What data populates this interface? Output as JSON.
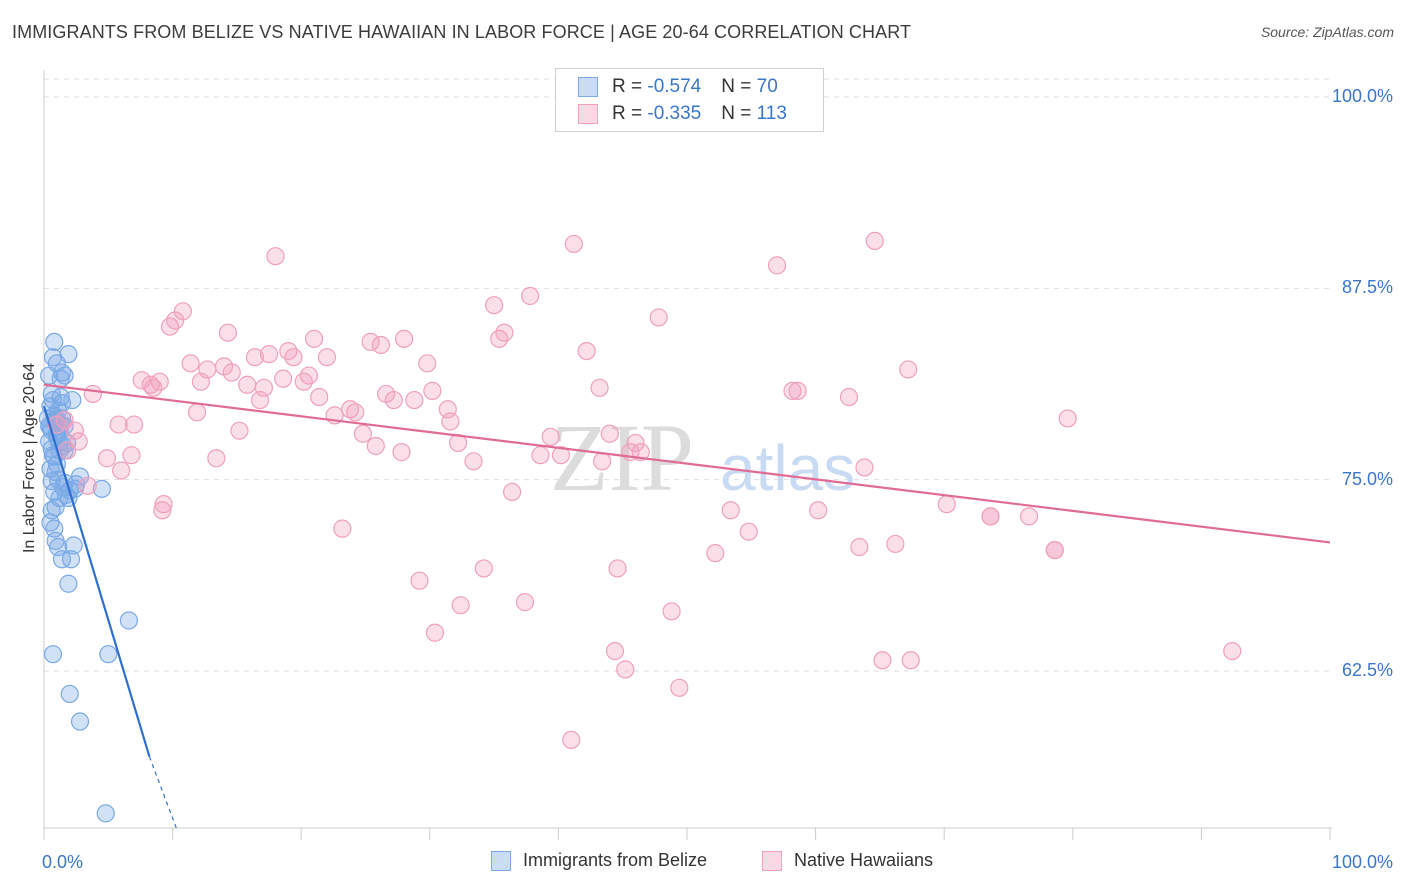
{
  "header": {
    "title": "IMMIGRANTS FROM BELIZE VS NATIVE HAWAIIAN IN LABOR FORCE | AGE 20-64 CORRELATION CHART",
    "source": "Source: ZipAtlas.com"
  },
  "watermark": {
    "zip": "ZIP",
    "atlas": "atlas"
  },
  "legend": {
    "rows": [
      {
        "r_label": "R = ",
        "r_value": "-0.574",
        "n_label": "N = ",
        "n_value": "70",
        "color": "#7aa9e6"
      },
      {
        "r_label": "R = ",
        "r_value": "-0.335",
        "n_label": "N = ",
        "n_value": "113",
        "color": "#f0a0bc"
      }
    ]
  },
  "bottom_legend": {
    "items": [
      {
        "label": "Immigrants from Belize",
        "color": "#7aa9e6"
      },
      {
        "label": "Native Hawaiians",
        "color": "#f0a0bc"
      }
    ]
  },
  "chart_data": {
    "type": "scatter",
    "ylabel": "In Labor Force | Age 20-64",
    "x_tick_labels": [
      "0.0%",
      "100.0%"
    ],
    "y_tick_labels": [
      "100.0%",
      "87.5%",
      "75.0%",
      "62.5%"
    ],
    "y_tick_values": [
      100,
      87.5,
      75,
      62.5
    ],
    "xlim": [
      0,
      100
    ],
    "ylim": [
      52,
      103
    ],
    "grid": true,
    "series": [
      {
        "name": "Immigrants from Belize",
        "color": "#7aa9e6",
        "line_color": "#2e6fd1",
        "trend": {
          "x0": 0.0,
          "y0": 79.8,
          "x1": 8.2,
          "y1": 56.9,
          "dash_to_x": 10.4,
          "dash_to_y": 52.0
        },
        "points": [
          [
            0.3,
            79.0
          ],
          [
            0.4,
            77.5
          ],
          [
            0.5,
            79.8
          ],
          [
            0.6,
            78.2
          ],
          [
            0.7,
            80.2
          ],
          [
            0.8,
            76.5
          ],
          [
            0.9,
            78.8
          ],
          [
            1.0,
            77.8
          ],
          [
            1.1,
            79.5
          ],
          [
            1.2,
            76.9
          ],
          [
            1.3,
            78.6
          ],
          [
            1.4,
            80.0
          ],
          [
            1.5,
            77.2
          ],
          [
            0.5,
            78.4
          ],
          [
            0.6,
            80.6
          ],
          [
            0.8,
            79.2
          ],
          [
            1.0,
            78.0
          ],
          [
            1.2,
            77.4
          ],
          [
            1.4,
            79.0
          ],
          [
            1.6,
            78.5
          ],
          [
            0.4,
            81.8
          ],
          [
            0.7,
            83.0
          ],
          [
            0.8,
            84.0
          ],
          [
            1.0,
            82.6
          ],
          [
            1.4,
            82.0
          ],
          [
            1.6,
            81.8
          ],
          [
            1.9,
            83.2
          ],
          [
            2.2,
            80.2
          ],
          [
            1.3,
            80.4
          ],
          [
            0.9,
            75.5
          ],
          [
            1.1,
            75.0
          ],
          [
            0.6,
            74.9
          ],
          [
            1.5,
            74.5
          ],
          [
            1.7,
            74.0
          ],
          [
            1.2,
            73.8
          ],
          [
            1.9,
            73.8
          ],
          [
            2.4,
            74.4
          ],
          [
            2.8,
            75.2
          ],
          [
            0.5,
            72.2
          ],
          [
            0.8,
            71.8
          ],
          [
            0.9,
            71.0
          ],
          [
            1.1,
            70.6
          ],
          [
            1.4,
            69.8
          ],
          [
            2.1,
            69.8
          ],
          [
            2.3,
            70.7
          ],
          [
            1.9,
            68.2
          ],
          [
            0.9,
            73.2
          ],
          [
            0.6,
            73.0
          ],
          [
            0.7,
            76.6
          ],
          [
            1.0,
            76.0
          ],
          [
            0.5,
            75.7
          ],
          [
            1.6,
            76.9
          ],
          [
            2.0,
            74.3
          ],
          [
            4.5,
            74.4
          ],
          [
            6.6,
            65.8
          ],
          [
            0.7,
            63.6
          ],
          [
            5.0,
            63.6
          ],
          [
            2.0,
            61.0
          ],
          [
            2.8,
            59.2
          ],
          [
            4.8,
            53.2
          ],
          [
            0.6,
            77.0
          ],
          [
            0.9,
            79.0
          ],
          [
            1.2,
            78.1
          ],
          [
            1.3,
            81.6
          ],
          [
            1.8,
            77.4
          ],
          [
            1.6,
            74.8
          ],
          [
            0.8,
            74.2
          ],
          [
            2.5,
            74.7
          ],
          [
            1.0,
            78.9
          ],
          [
            0.4,
            78.5
          ]
        ]
      },
      {
        "name": "Native Hawaiians",
        "color": "#f0a0bc",
        "line_color": "#e06b95",
        "trend": {
          "x0": 0.0,
          "y0": 81.2,
          "x1": 100.0,
          "y1": 70.9
        },
        "points": [
          [
            1.0,
            78.6
          ],
          [
            1.6,
            78.9
          ],
          [
            2.4,
            78.2
          ],
          [
            2.7,
            77.5
          ],
          [
            3.8,
            80.6
          ],
          [
            1.8,
            76.9
          ],
          [
            3.4,
            74.6
          ],
          [
            4.9,
            76.4
          ],
          [
            6.0,
            75.6
          ],
          [
            5.8,
            78.6
          ],
          [
            6.8,
            76.6
          ],
          [
            7.0,
            78.6
          ],
          [
            7.6,
            81.5
          ],
          [
            8.3,
            81.2
          ],
          [
            8.5,
            81.0
          ],
          [
            9.0,
            81.4
          ],
          [
            9.2,
            73.0
          ],
          [
            9.3,
            73.4
          ],
          [
            9.8,
            85.0
          ],
          [
            10.2,
            85.4
          ],
          [
            10.8,
            86.0
          ],
          [
            11.4,
            82.6
          ],
          [
            11.9,
            79.4
          ],
          [
            12.2,
            81.4
          ],
          [
            12.7,
            82.2
          ],
          [
            13.4,
            76.4
          ],
          [
            14.0,
            82.4
          ],
          [
            14.3,
            84.6
          ],
          [
            14.6,
            82.0
          ],
          [
            15.2,
            78.2
          ],
          [
            15.8,
            81.2
          ],
          [
            16.4,
            83.0
          ],
          [
            16.8,
            80.2
          ],
          [
            17.1,
            81.0
          ],
          [
            17.5,
            83.2
          ],
          [
            18.0,
            89.6
          ],
          [
            18.6,
            81.6
          ],
          [
            19.0,
            83.4
          ],
          [
            19.4,
            83.0
          ],
          [
            20.2,
            81.4
          ],
          [
            20.6,
            81.8
          ],
          [
            21.0,
            84.2
          ],
          [
            21.4,
            80.4
          ],
          [
            22.0,
            83.0
          ],
          [
            22.6,
            79.2
          ],
          [
            23.2,
            71.8
          ],
          [
            23.8,
            79.6
          ],
          [
            24.2,
            79.4
          ],
          [
            24.8,
            78.0
          ],
          [
            25.4,
            84.0
          ],
          [
            25.8,
            77.2
          ],
          [
            26.2,
            83.8
          ],
          [
            26.6,
            80.6
          ],
          [
            27.2,
            80.2
          ],
          [
            27.8,
            76.8
          ],
          [
            28.0,
            84.2
          ],
          [
            28.8,
            80.2
          ],
          [
            29.2,
            68.4
          ],
          [
            29.8,
            82.6
          ],
          [
            30.2,
            80.8
          ],
          [
            30.4,
            65.0
          ],
          [
            31.4,
            79.6
          ],
          [
            31.6,
            78.8
          ],
          [
            32.2,
            77.4
          ],
          [
            32.4,
            66.8
          ],
          [
            33.4,
            76.2
          ],
          [
            34.2,
            69.2
          ],
          [
            35.0,
            86.4
          ],
          [
            35.4,
            84.2
          ],
          [
            35.8,
            84.6
          ],
          [
            36.4,
            74.2
          ],
          [
            37.4,
            67.0
          ],
          [
            37.8,
            87.0
          ],
          [
            38.6,
            76.6
          ],
          [
            39.4,
            77.8
          ],
          [
            40.2,
            76.6
          ],
          [
            41.2,
            90.4
          ],
          [
            41.0,
            58.0
          ],
          [
            42.2,
            83.4
          ],
          [
            43.2,
            81.0
          ],
          [
            43.4,
            76.2
          ],
          [
            44.0,
            78.0
          ],
          [
            44.4,
            63.8
          ],
          [
            44.6,
            69.2
          ],
          [
            45.2,
            62.6
          ],
          [
            45.6,
            76.8
          ],
          [
            46.0,
            77.4
          ],
          [
            46.4,
            76.8
          ],
          [
            47.8,
            85.6
          ],
          [
            48.8,
            66.4
          ],
          [
            49.4,
            61.4
          ],
          [
            52.2,
            70.2
          ],
          [
            53.4,
            73.0
          ],
          [
            54.8,
            71.6
          ],
          [
            57.0,
            89.0
          ],
          [
            58.2,
            80.8
          ],
          [
            58.6,
            80.8
          ],
          [
            60.2,
            73.0
          ],
          [
            62.6,
            80.4
          ],
          [
            63.4,
            70.6
          ],
          [
            63.8,
            75.8
          ],
          [
            64.6,
            90.6
          ],
          [
            65.2,
            63.2
          ],
          [
            66.2,
            70.8
          ],
          [
            67.2,
            82.2
          ],
          [
            70.2,
            73.4
          ],
          [
            73.6,
            72.6
          ],
          [
            76.6,
            72.6
          ],
          [
            78.6,
            70.4
          ],
          [
            79.6,
            79.0
          ],
          [
            92.4,
            63.8
          ],
          [
            67.4,
            63.2
          ],
          [
            73.6,
            72.6
          ],
          [
            78.6,
            70.4
          ]
        ]
      }
    ]
  }
}
